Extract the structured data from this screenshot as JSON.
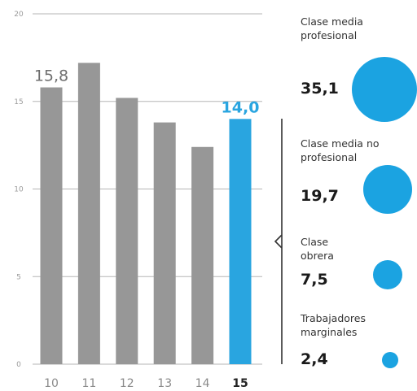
{
  "chart_data": [
    {
      "type": "bar",
      "categories": [
        "10",
        "11",
        "12",
        "13",
        "14",
        "15"
      ],
      "values": [
        15.8,
        17.2,
        15.2,
        13.8,
        12.4,
        14.0
      ],
      "highlight_index": 5,
      "data_labels": {
        "0": "15,8",
        "5": "14,0"
      },
      "ytick_labels": [
        "20",
        "15",
        "10",
        "5",
        "0"
      ],
      "ylim": [
        0,
        20
      ],
      "grid": true,
      "colors": {
        "bar": "#979797",
        "highlight": "#29a5e0",
        "grid": "#b5b5b5"
      }
    },
    {
      "type": "bubble",
      "categories": [
        "Clase media profesional",
        "Clase media no profesional",
        "Clase obrera",
        "Trabajadores marginales"
      ],
      "values": [
        35.1,
        19.7,
        7.5,
        2.4
      ],
      "color": "#1ba3e1"
    }
  ],
  "classes": [
    {
      "name": "Clase media\nprofesional",
      "value": "35,1"
    },
    {
      "name": "Clase media no\nprofesional",
      "value": "19,7"
    },
    {
      "name": "Clase\nobrera",
      "value": "7,5"
    },
    {
      "name": "Trabajadores\nmarginales",
      "value": "2,4"
    }
  ]
}
